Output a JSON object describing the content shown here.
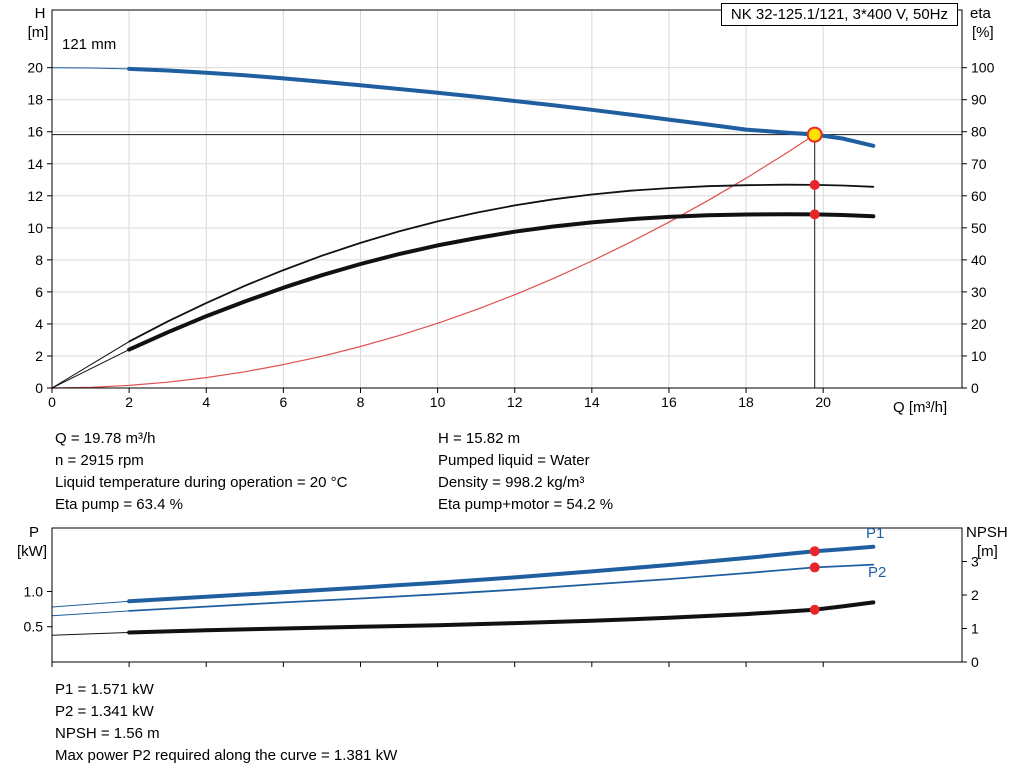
{
  "header": {
    "title_box": "NK 32-125.1/121, 3*400 V, 50Hz",
    "impeller": "121 mm"
  },
  "axis_labels": {
    "h": "H",
    "h_unit": "[m]",
    "eta": "eta",
    "eta_unit": "[%]",
    "q": "Q [m³/h]",
    "p": "P",
    "p_unit": "[kW]",
    "npsh": "NPSH",
    "npsh_unit": "[m]"
  },
  "curve_labels": {
    "p1": "P1",
    "p2": "P2"
  },
  "info_top": {
    "left": [
      "Q = 19.78 m³/h",
      "n = 2915 rpm",
      "Liquid temperature during operation = 20 °C",
      "Eta pump = 63.4 %"
    ],
    "right": [
      "H = 15.82 m",
      "Pumped liquid = Water",
      "Density = 998.2 kg/m³",
      "Eta pump+motor = 54.2 %"
    ]
  },
  "info_bottom": [
    "P1 = 1.571 kW",
    "P2 = 1.341 kW",
    "NPSH = 1.56 m",
    "Max power P2 required along the curve = 1.381 kW"
  ],
  "chart_data": [
    {
      "type": "line",
      "title": "NK 32-125.1/121, 3*400 V, 50Hz",
      "xlabel": "Q [m³/h]",
      "ylabel_left": "H [m]",
      "ylabel_right": "eta [%]",
      "xlim": [
        0,
        23.6
      ],
      "ylim_left": [
        0,
        23.6
      ],
      "ylim_right": [
        0,
        118
      ],
      "grid": true,
      "legend": "none",
      "xticks": {
        "v": [
          0,
          2,
          4,
          6,
          8,
          10,
          12,
          14,
          16,
          18,
          20
        ],
        "t": [
          "0",
          "2",
          "4",
          "6",
          "8",
          "10",
          "12",
          "14",
          "16",
          "18",
          "20"
        ]
      },
      "yticks_left": {
        "v": [
          0,
          2,
          4,
          6,
          8,
          10,
          12,
          14,
          16,
          18,
          20
        ],
        "t": [
          "0",
          "2",
          "4",
          "6",
          "8",
          "10",
          "12",
          "14",
          "16",
          "18",
          "20"
        ]
      },
      "yticks_right": {
        "v": [
          0,
          10,
          20,
          30,
          40,
          50,
          60,
          70,
          80,
          90,
          100
        ],
        "t": [
          "0",
          "10",
          "20",
          "30",
          "40",
          "50",
          "60",
          "70",
          "80",
          "90",
          "100"
        ]
      },
      "series": [
        {
          "name": "head-curve-121mm",
          "axis": "left",
          "color": "#1f5fa0",
          "width": 4,
          "thin_until": 2,
          "x": [
            0,
            1,
            2,
            3,
            4,
            5,
            6,
            7,
            8,
            9,
            10,
            11,
            12,
            13,
            14,
            15,
            16,
            17,
            18,
            19,
            19.78,
            20.5,
            21.3
          ],
          "y": [
            20,
            19.98,
            19.92,
            19.82,
            19.68,
            19.52,
            19.33,
            19.12,
            18.9,
            18.67,
            18.43,
            18.18,
            17.92,
            17.65,
            17.37,
            17.07,
            16.76,
            16.45,
            16.13,
            15.95,
            15.82,
            15.58,
            15.12
          ]
        },
        {
          "name": "system-curve",
          "axis": "left",
          "color": "#e05050",
          "width": 1.2,
          "x": [
            0,
            1,
            2,
            3,
            4,
            5,
            6,
            7,
            8,
            9,
            10,
            11,
            12,
            13,
            14,
            15,
            16,
            17,
            18,
            19,
            19.78
          ],
          "y": [
            0,
            0.04,
            0.16,
            0.36,
            0.65,
            1.01,
            1.46,
            1.98,
            2.59,
            3.27,
            4.04,
            4.89,
            5.82,
            6.83,
            7.93,
            9.1,
            10.35,
            11.69,
            13.1,
            14.6,
            15.82
          ]
        },
        {
          "name": "eta-pump-curve",
          "axis": "right",
          "color": "#111111",
          "width": 1.8,
          "thin_until": 2,
          "x": [
            0,
            2,
            3,
            4,
            5,
            6,
            7,
            8,
            9,
            10,
            11,
            12,
            13,
            14,
            15,
            16,
            17,
            18,
            19,
            19.78,
            20.5,
            21.3
          ],
          "y": [
            0,
            14.5,
            20.8,
            26.5,
            31.9,
            36.8,
            41.3,
            45.3,
            48.9,
            52,
            54.7,
            57,
            58.9,
            60.4,
            61.6,
            62.4,
            63,
            63.3,
            63.45,
            63.4,
            63.2,
            62.8
          ]
        },
        {
          "name": "eta-pump-motor-curve",
          "axis": "right",
          "color": "#111111",
          "width": 4,
          "thin_until": 2,
          "x": [
            0,
            2,
            3,
            4,
            5,
            6,
            7,
            8,
            9,
            10,
            11,
            12,
            13,
            14,
            15,
            16,
            17,
            18,
            19,
            19.78,
            20.5,
            21.3
          ],
          "y": [
            0,
            12,
            17.4,
            22.4,
            27,
            31.3,
            35.2,
            38.7,
            41.8,
            44.5,
            46.8,
            48.8,
            50.4,
            51.7,
            52.7,
            53.4,
            53.9,
            54.15,
            54.25,
            54.2,
            54,
            53.6
          ]
        }
      ],
      "lines": [
        {
          "type": "v",
          "x": 19.78,
          "y1": 0,
          "y2": 15.82,
          "axis": "left",
          "color": "#1a1a1a",
          "width": 1
        },
        {
          "type": "h",
          "y": 15.82,
          "x1": 0,
          "x2": 23.6,
          "axis": "left",
          "color": "#1a1a1a",
          "width": 1
        }
      ],
      "markers": [
        {
          "x": 19.78,
          "y": 15.82,
          "axis": "left",
          "r": 7,
          "fill": "#ffe000",
          "stroke": "#e8262a",
          "sw": 2,
          "name": "duty-point"
        },
        {
          "x": 19.78,
          "y": 63.4,
          "axis": "right",
          "r": 5,
          "fill": "#e8262a",
          "name": "eta-pump-point"
        },
        {
          "x": 19.78,
          "y": 54.2,
          "axis": "right",
          "r": 5,
          "fill": "#e8262a",
          "name": "eta-pump-motor-point"
        }
      ],
      "duty_point": {
        "Q": 19.78,
        "H": 15.82,
        "eta_pump": 63.4,
        "eta_pump_motor": 54.2
      }
    },
    {
      "type": "line",
      "title": "",
      "xlabel": "",
      "ylabel_left": "P [kW]",
      "ylabel_right": "NPSH [m]",
      "xlim": [
        0,
        23.6
      ],
      "ylim_left": [
        0,
        1.9
      ],
      "ylim_right": [
        0,
        4
      ],
      "grid": false,
      "legend": "inline (P1, P2)",
      "xticks": {
        "v": [
          0,
          2,
          4,
          6,
          8,
          10,
          12,
          14,
          16,
          18,
          20
        ],
        "t": null
      },
      "yticks_left": {
        "v": [
          0.5,
          1.0
        ],
        "t": [
          "0.5",
          "1.0"
        ]
      },
      "yticks_right": {
        "v": [
          0,
          1,
          2,
          3
        ],
        "t": [
          "0",
          "1",
          "2",
          "3"
        ]
      },
      "series": [
        {
          "name": "p1-curve",
          "axis": "left",
          "color": "#1f5fa0",
          "width": 4,
          "thin_until": 2,
          "x": [
            0,
            2,
            4,
            6,
            8,
            10,
            12,
            14,
            16,
            18,
            19.78,
            20.5,
            21.3
          ],
          "y": [
            0.78,
            0.86,
            0.925,
            0.99,
            1.055,
            1.125,
            1.2,
            1.285,
            1.375,
            1.475,
            1.571,
            1.6,
            1.635
          ]
        },
        {
          "name": "p2-curve",
          "axis": "left",
          "color": "#1f5fa0",
          "width": 1.8,
          "thin_until": 2,
          "x": [
            0,
            2,
            4,
            6,
            8,
            10,
            12,
            14,
            16,
            18,
            19.78,
            20.5,
            21.3
          ],
          "y": [
            0.655,
            0.725,
            0.785,
            0.845,
            0.9,
            0.96,
            1.025,
            1.1,
            1.175,
            1.26,
            1.341,
            1.36,
            1.381
          ]
        },
        {
          "name": "npsh-curve",
          "axis": "right",
          "color": "#111111",
          "width": 4,
          "thin_until": 2,
          "x": [
            0,
            2,
            4,
            6,
            8,
            10,
            12,
            14,
            16,
            18,
            19.78,
            20.5,
            21.3
          ],
          "y": [
            0.8,
            0.88,
            0.95,
            1.0,
            1.05,
            1.1,
            1.16,
            1.23,
            1.32,
            1.43,
            1.56,
            1.66,
            1.78
          ]
        }
      ],
      "lines": [],
      "markers": [
        {
          "x": 19.78,
          "y": 1.571,
          "axis": "left",
          "r": 5,
          "fill": "#e8262a",
          "name": "p1-point"
        },
        {
          "x": 19.78,
          "y": 1.341,
          "axis": "left",
          "r": 5,
          "fill": "#e8262a",
          "name": "p2-point"
        },
        {
          "x": 19.78,
          "y": 1.56,
          "axis": "right",
          "r": 5,
          "fill": "#e8262a",
          "name": "npsh-point"
        }
      ],
      "duty_point": {
        "Q": 19.78,
        "P1_kW": 1.571,
        "P2_kW": 1.341,
        "NPSH_m": 1.56
      }
    }
  ]
}
